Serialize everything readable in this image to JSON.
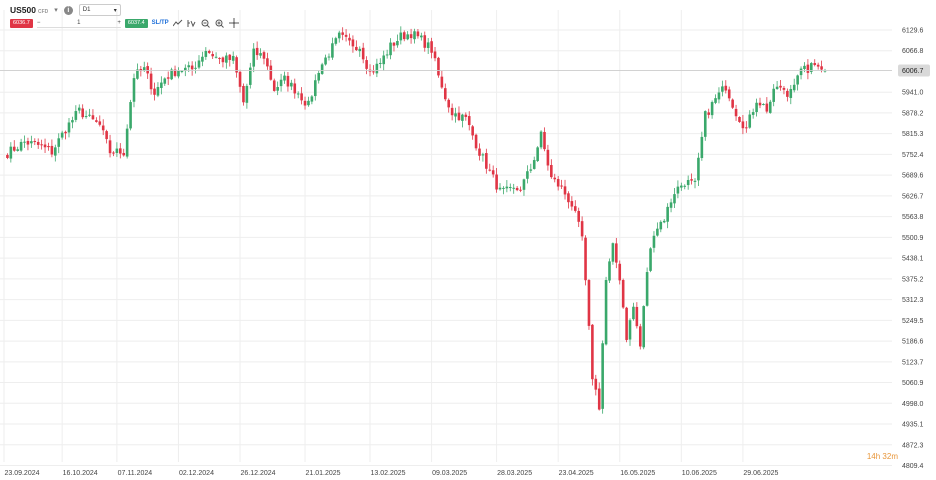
{
  "header": {
    "symbol": "US500",
    "symbol_type": "CFD",
    "timeframe": "D1",
    "sell_price": "6036.7",
    "quantity": "1",
    "buy_price": "6037.4",
    "sl_tp_label": "SL/TP",
    "minus_label": "−",
    "plus_label": "+"
  },
  "icons": [
    "chevron-down-icon",
    "info-icon",
    "line-chart-icon",
    "indicator-icon",
    "zoom-out-icon",
    "zoom-in-icon",
    "crosshair-icon"
  ],
  "countdown": "14h 32m",
  "colors": {
    "up": "#3aa86b",
    "down": "#e03545",
    "grid": "#eeeeee",
    "countdown": "#e8963a"
  },
  "chart_data": {
    "type": "candlestick",
    "current_price": "6006.7",
    "y_ticks": [
      "6129.6",
      "6066.8",
      "5941.0",
      "5878.2",
      "5815.3",
      "5752.4",
      "5689.6",
      "5626.7",
      "5563.8",
      "5500.9",
      "5438.1",
      "5375.2",
      "5312.3",
      "5249.5",
      "5186.6",
      "5123.7",
      "5060.9",
      "4998.0",
      "4935.1",
      "4872.3",
      "4809.4"
    ],
    "x_ticks": [
      "23.09.2024",
      "16.10.2024",
      "07.11.2024",
      "02.12.2024",
      "26.12.2024",
      "21.01.2025",
      "13.02.2025",
      "09.03.2025",
      "28.03.2025",
      "23.04.2025",
      "16.05.2025",
      "10.06.2025",
      "29.06.2025"
    ],
    "ylim": [
      4800,
      6180
    ],
    "anchors": [
      [
        0,
        5750
      ],
      [
        6,
        5790
      ],
      [
        10,
        5780
      ],
      [
        14,
        5760
      ],
      [
        18,
        5830
      ],
      [
        22,
        5885
      ],
      [
        25,
        5860
      ],
      [
        28,
        5840
      ],
      [
        31,
        5760
      ],
      [
        35,
        5760
      ],
      [
        38,
        5990
      ],
      [
        41,
        6010
      ],
      [
        44,
        5940
      ],
      [
        47,
        5985
      ],
      [
        51,
        6010
      ],
      [
        55,
        6010
      ],
      [
        59,
        6070
      ],
      [
        63,
        6040
      ],
      [
        67,
        6040
      ],
      [
        70,
        5910
      ],
      [
        73,
        6060
      ],
      [
        76,
        6050
      ],
      [
        79,
        5950
      ],
      [
        82,
        5980
      ],
      [
        86,
        5940
      ],
      [
        89,
        5900
      ],
      [
        92,
        6010
      ],
      [
        95,
        6060
      ],
      [
        98,
        6110
      ],
      [
        101,
        6090
      ],
      [
        104,
        6080
      ],
      [
        107,
        6000
      ],
      [
        110,
        6030
      ],
      [
        113,
        6080
      ],
      [
        116,
        6110
      ],
      [
        119,
        6120
      ],
      [
        122,
        6100
      ],
      [
        125,
        6070
      ],
      [
        128,
        5950
      ],
      [
        131,
        5880
      ],
      [
        135,
        5860
      ],
      [
        139,
        5760
      ],
      [
        142,
        5700
      ],
      [
        145,
        5640
      ],
      [
        148,
        5640
      ],
      [
        151,
        5650
      ],
      [
        154,
        5710
      ],
      [
        157,
        5810
      ],
      [
        160,
        5680
      ],
      [
        163,
        5650
      ],
      [
        166,
        5600
      ],
      [
        169,
        5500
      ],
      [
        172,
        5080
      ],
      [
        174,
        4990
      ],
      [
        176,
        5370
      ],
      [
        178,
        5470
      ],
      [
        180,
        5380
      ],
      [
        182,
        5200
      ],
      [
        184,
        5290
      ],
      [
        186,
        5170
      ],
      [
        188,
        5400
      ],
      [
        190,
        5520
      ],
      [
        193,
        5560
      ],
      [
        196,
        5640
      ],
      [
        199,
        5670
      ],
      [
        202,
        5660
      ],
      [
        205,
        5870
      ],
      [
        208,
        5920
      ],
      [
        211,
        5960
      ],
      [
        214,
        5880
      ],
      [
        217,
        5830
      ],
      [
        220,
        5920
      ],
      [
        223,
        5890
      ],
      [
        226,
        5960
      ],
      [
        229,
        5930
      ],
      [
        232,
        6000
      ],
      [
        235,
        6010
      ],
      [
        238,
        6030
      ],
      [
        240,
        6006.7
      ]
    ],
    "x_tick_index": [
      0,
      17,
      33,
      51,
      69,
      88,
      107,
      125,
      144,
      162,
      180,
      198,
      216
    ]
  }
}
